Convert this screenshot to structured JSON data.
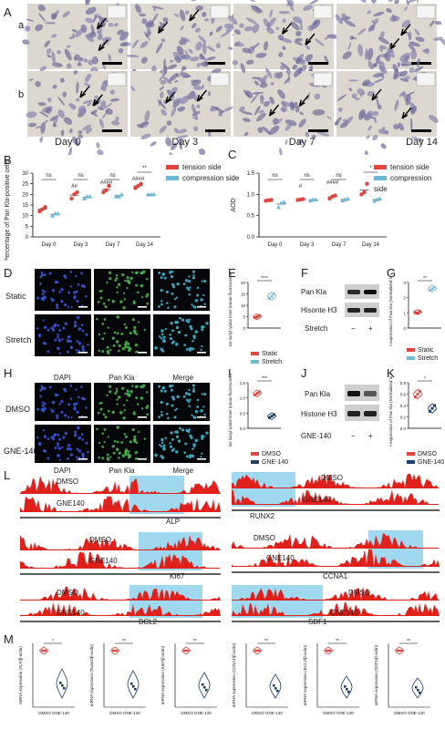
{
  "panel_letters": {
    "A": "A",
    "a": "a",
    "b": "b",
    "B": "B",
    "C": "C",
    "D": "D",
    "E": "E",
    "F": "F",
    "G": "G",
    "H": "H",
    "I": "I",
    "J": "J",
    "K": "K",
    "L": "L",
    "M": "M"
  },
  "section_A": {
    "days": [
      "Day 0",
      "Day 3",
      "Day 7",
      "Day 14"
    ]
  },
  "panel_B": {
    "ylabel": "Percentage of Pan Kla-positive cells (%)",
    "legend": [
      {
        "label": "tension side",
        "color": "#e0443e"
      },
      {
        "label": "compression side",
        "color": "#6cb8d8"
      }
    ],
    "sig": {
      "top": [
        "ns",
        "ns",
        "ns",
        "**"
      ],
      "hash": [
        "##",
        "####",
        "####"
      ]
    }
  },
  "panel_C": {
    "ylabel": "AOD",
    "legend": [
      {
        "label": "tension side",
        "color": "#e0443e"
      },
      {
        "label": "compression side",
        "color": "#6cb8d8"
      }
    ],
    "sig": {
      "top": [
        "ns",
        "ns",
        "ns",
        "*"
      ],
      "mid": [
        "ns",
        "ns"
      ],
      "hash": [
        "#",
        "####"
      ]
    }
  },
  "chart_data": [
    {
      "panel": "B",
      "type": "scatter",
      "categories": [
        "Day 0",
        "Day 3",
        "Day 7",
        "Day 14"
      ],
      "ylabel": "Percentage of Pan Kla-positive cells (%)",
      "yticks": [
        "0",
        "5",
        "10",
        "15",
        "20",
        "25",
        "30"
      ],
      "series": [
        {
          "name": "tension side",
          "color": "#e0443e",
          "values": [
            [
              12,
              13,
              14
            ],
            [
              18,
              20,
              21
            ],
            [
              21,
              22,
              24
            ],
            [
              23,
              24,
              25
            ]
          ]
        },
        {
          "name": "compression side",
          "color": "#6cb8d8",
          "values": [
            [
              10,
              11,
              11
            ],
            [
              18,
              19,
              19
            ],
            [
              19,
              19,
              20
            ],
            [
              20,
              20,
              20
            ]
          ]
        }
      ]
    },
    {
      "panel": "C",
      "type": "scatter",
      "categories": [
        "Day 0",
        "Day 3",
        "Day 7",
        "Day 14"
      ],
      "ylabel": "AOD",
      "yticks": [
        "0.0",
        "0.5",
        "1.0",
        "1.5"
      ],
      "series": [
        {
          "name": "tension side",
          "color": "#e0443e",
          "values": [
            [
              0.85,
              0.86,
              0.87
            ],
            [
              0.87,
              0.88,
              0.89
            ],
            [
              0.9,
              0.95,
              0.97
            ],
            [
              1.0,
              1.05,
              1.25
            ]
          ]
        },
        {
          "name": "compression side",
          "color": "#6cb8d8",
          "values": [
            [
              0.7,
              0.8,
              0.82
            ],
            [
              0.86,
              0.88,
              0.88
            ],
            [
              0.86,
              0.88,
              0.9
            ],
            [
              0.85,
              0.88,
              0.9
            ]
          ]
        }
      ]
    },
    {
      "panel": "E",
      "type": "scatter",
      "categories": [
        "Static",
        "Stretch"
      ],
      "ylabel": "Relative lactyl lysine level (mean fluorescence intensity)",
      "yticks": [
        "0",
        "5",
        "10",
        "15",
        "20"
      ],
      "series": [
        {
          "name": "Static",
          "color": "#e0443e",
          "values": [
            [
              4.5,
              5.0,
              5.5
            ]
          ]
        },
        {
          "name": "Stretch",
          "color": "#6cb8d8",
          "values": [
            [
              13,
              14,
              15
            ]
          ]
        }
      ]
    },
    {
      "panel": "G",
      "type": "scatter",
      "categories": [
        "Static",
        "Stretch"
      ],
      "ylabel": "Relative expression of Pan Kla (Normalized to western blot)",
      "yticks": [
        "0",
        "1",
        "2",
        "3"
      ],
      "series": [
        {
          "name": "Static",
          "color": "#e0443e",
          "values": [
            [
              1.0,
              1.0,
              1.1
            ]
          ]
        },
        {
          "name": "Stretch",
          "color": "#6cb8d8",
          "values": [
            [
              2.5,
              2.6,
              2.7
            ]
          ]
        }
      ]
    },
    {
      "panel": "I",
      "type": "scatter",
      "categories": [
        "DMSO",
        "GNE-140"
      ],
      "ylabel": "Relative lactyl lysine level (mean fluorescence intensity)",
      "yticks": [
        "0.0",
        "0.5",
        "1.0",
        "1.5"
      ],
      "series": [
        {
          "name": "DMSO",
          "color": "#e0443e",
          "values": [
            [
              1.1,
              1.15,
              1.2
            ]
          ]
        },
        {
          "name": "GNE-140",
          "color": "#1c3f6e",
          "values": [
            [
              0.35,
              0.4,
              0.45
            ]
          ]
        }
      ]
    },
    {
      "panel": "K",
      "type": "scatter",
      "categories": [
        "DMSO",
        "GNE-140"
      ],
      "ylabel": "Relative expression of Pan Kla (Normalized to western blot)",
      "yticks": [
        "0.0",
        "0.2",
        "0.4",
        "0.6",
        "0.8"
      ],
      "series": [
        {
          "name": "DMSO",
          "color": "#e0443e",
          "values": [
            [
              0.55,
              0.6,
              0.65
            ]
          ]
        },
        {
          "name": "GNE-140",
          "color": "#1c3f6e",
          "values": [
            [
              0.3,
              0.35,
              0.4
            ]
          ]
        }
      ]
    }
  ],
  "panel_D": {
    "rows": [
      "Static",
      "Stretch"
    ]
  },
  "panel_E": {
    "sig": "****",
    "legend": [
      {
        "label": "Static",
        "color": "#e0443e"
      },
      {
        "label": "Stretch",
        "color": "#6cb8d8"
      }
    ]
  },
  "panel_F": {
    "bands": [
      "Pan Kla",
      "Hisonte H3"
    ],
    "stretch_label": "Stretch",
    "signs": [
      "−",
      "+"
    ]
  },
  "panel_G": {
    "sig": "**",
    "legend": [
      {
        "label": "Static",
        "color": "#e0443e"
      },
      {
        "label": "Stretch",
        "color": "#6cb8d8"
      }
    ]
  },
  "panel_H": {
    "cols": [
      "DAPI",
      "Pan Kla",
      "Merge"
    ],
    "rows": [
      "DMSO",
      "GNE-140"
    ],
    "bottom_cols": [
      "DAPI",
      "Pan Kla",
      "Merge"
    ]
  },
  "panel_I": {
    "sig": "***",
    "legend": [
      {
        "label": "DMSO",
        "color": "#e0443e"
      },
      {
        "label": "GNE-140",
        "color": "#1c3f6e"
      }
    ]
  },
  "panel_J": {
    "bands": [
      "Pan Kla",
      "Histone H3"
    ],
    "treat_label": "GNE-140",
    "signs": [
      "−",
      "+"
    ]
  },
  "panel_K": {
    "sig": "*",
    "legend": [
      {
        "label": "DMSO",
        "color": "#e0443e"
      },
      {
        "label": "GNE-140",
        "color": "#1c3f6e"
      }
    ]
  },
  "panel_L": {
    "tracks": [
      {
        "gene": "ALP",
        "top": "DMSO",
        "bottom": "GNE140"
      },
      {
        "gene": "RUNX2",
        "top": "DMSO",
        "bottom": "GNE140"
      },
      {
        "gene": "KI67",
        "top": "DMSO",
        "bottom": "GNE140"
      },
      {
        "gene": "CCNA1",
        "top": "DMSO",
        "bottom": "GNE140"
      },
      {
        "gene": "BCL2",
        "top": "DMSO",
        "bottom": "GNE140"
      },
      {
        "gene": "SDF1",
        "top": "DMSO",
        "bottom": "GNE140"
      }
    ]
  },
  "panel_M": {
    "plots": [
      {
        "ylabel": "mRNA expression (ALP/β-actin)",
        "sig": "*",
        "xl": "DMSO GNE-140"
      },
      {
        "ylabel": "mRNA expression (Runx2/β-actin)",
        "sig": "**",
        "xl": "DMSO GNE-140"
      },
      {
        "ylabel": "mRNA expression (KI67/β-actin)",
        "sig": "**",
        "xl": "DMSO GNE-140"
      },
      {
        "ylabel": "mRNA expression (CCNA1/β-actin)",
        "sig": "**",
        "xl": "DMSO GNE-140"
      },
      {
        "ylabel": "mRNA expression (BCL2/β-actin)",
        "sig": "**",
        "xl": "DMSO GNE-140"
      },
      {
        "ylabel": "mRNA expression (SDF1/β-actin)",
        "sig": "**",
        "xl": "DMSO GNE-140"
      }
    ]
  }
}
